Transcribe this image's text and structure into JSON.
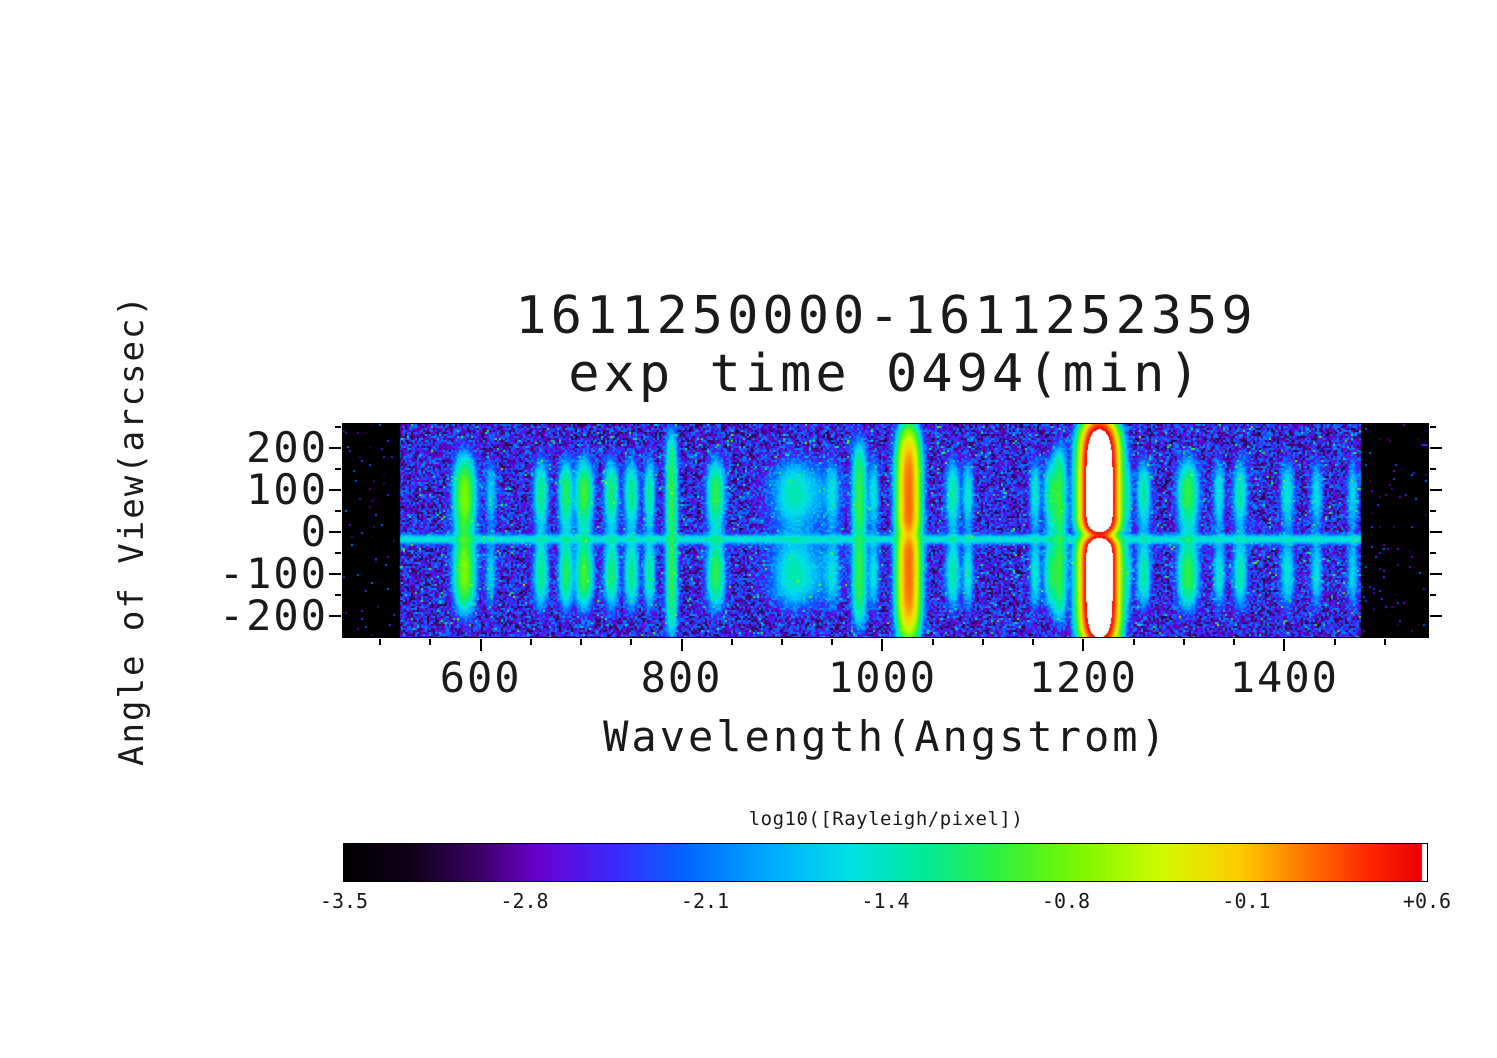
{
  "chart_data": {
    "type": "heatmap",
    "title": "1611250000-1611252359",
    "subtitle": "exp time 0494(min)",
    "xlabel": "Wavelength(Angstrom)",
    "ylabel": "Angle of View(arcsec)",
    "x_ticks": [
      "600",
      "800",
      "1000",
      "1200",
      "1400"
    ],
    "x_tick_values": [
      600,
      800,
      1000,
      1200,
      1400
    ],
    "x_minor_tick_values": [
      500,
      550,
      650,
      700,
      750,
      850,
      900,
      950,
      1050,
      1100,
      1150,
      1250,
      1300,
      1350,
      1450,
      1500
    ],
    "y_ticks": [
      "200",
      "100",
      "0",
      "-100",
      "-200"
    ],
    "y_tick_values": [
      200,
      100,
      0,
      -100,
      -200
    ],
    "y_minor_tick_values": [
      250,
      150,
      50,
      -50,
      -150,
      -250
    ],
    "xlim": [
      463,
      1543
    ],
    "ylim": [
      -250,
      256
    ],
    "data_region": [
      520,
      1476
    ],
    "background_log_level": -2.6,
    "center_streak": {
      "y": -18,
      "intensity": -1.55,
      "sigma": 6
    },
    "colorbar": {
      "label": "log10([Rayleigh/pixel])",
      "tick_labels": [
        "-3.5",
        "-2.8",
        "-2.1",
        "-1.4",
        "-0.8",
        "-0.1",
        "+0.6"
      ],
      "range": [
        -3.5,
        0.6
      ]
    },
    "emission_lines": [
      {
        "wavelength": 584,
        "intensity": -0.72,
        "width": 7,
        "profile": "lobes",
        "lobe1": 90,
        "lobe2": 100,
        "sig1": 68,
        "sig2": 72
      },
      {
        "wavelength": 610,
        "intensity": -1.75,
        "width": 4,
        "profile": "lobes"
      },
      {
        "wavelength": 660,
        "intensity": -1.25,
        "width": 5,
        "profile": "lobes"
      },
      {
        "wavelength": 685,
        "intensity": -1.12,
        "width": 5,
        "profile": "lobes"
      },
      {
        "wavelength": 703,
        "intensity": -0.95,
        "width": 6,
        "profile": "lobes"
      },
      {
        "wavelength": 730,
        "intensity": -1.18,
        "width": 5,
        "profile": "lobes"
      },
      {
        "wavelength": 750,
        "intensity": -1.25,
        "width": 5,
        "profile": "lobes"
      },
      {
        "wavelength": 768,
        "intensity": -1.3,
        "width": 4,
        "profile": "lobes"
      },
      {
        "wavelength": 790,
        "intensity": -1.05,
        "width": 4,
        "profile": "full",
        "extent": 212,
        "pinch": 0.3
      },
      {
        "wavelength": 834,
        "intensity": -1.05,
        "width": 6,
        "profile": "lobes"
      },
      {
        "wavelength": 911,
        "intensity": -1.55,
        "width": 13,
        "profile": "lobes"
      },
      {
        "wavelength": 923,
        "intensity": -1.85,
        "width": 25,
        "profile": "lobes"
      },
      {
        "wavelength": 950,
        "intensity": -1.65,
        "width": 5,
        "profile": "lobes"
      },
      {
        "wavelength": 977,
        "intensity": -1.02,
        "width": 5,
        "profile": "full",
        "extent": 192,
        "pinch": 0.4
      },
      {
        "wavelength": 991,
        "intensity": -1.55,
        "width": 4,
        "profile": "lobes"
      },
      {
        "wavelength": 1026,
        "intensity": 0.2,
        "width": 7,
        "profile": "full",
        "extent": 215,
        "pinch": 0.45,
        "pinch_sigma": 18
      },
      {
        "wavelength": 1070,
        "intensity": -1.35,
        "width": 5,
        "profile": "lobes"
      },
      {
        "wavelength": 1085,
        "intensity": -1.5,
        "width": 4,
        "profile": "lobes"
      },
      {
        "wavelength": 1152,
        "intensity": -1.5,
        "width": 4,
        "profile": "lobes"
      },
      {
        "wavelength": 1168,
        "intensity": -1.15,
        "width": 5,
        "profile": "lobes"
      },
      {
        "wavelength": 1176,
        "intensity": -1.02,
        "width": 5,
        "profile": "full",
        "extent": 178,
        "pinch": 0.4
      },
      {
        "wavelength": 1216,
        "intensity": 1.35,
        "width": 10,
        "profile": "full",
        "extent": 232,
        "exp": 8,
        "pinch": 0.88,
        "pinch_sigma": 18
      },
      {
        "wavelength": 1243,
        "intensity": -1.55,
        "width": 4,
        "profile": "lobes"
      },
      {
        "wavelength": 1260,
        "intensity": -1.35,
        "width": 5,
        "profile": "lobes"
      },
      {
        "wavelength": 1304,
        "intensity": -1.02,
        "width": 7,
        "profile": "lobes"
      },
      {
        "wavelength": 1335,
        "intensity": -1.5,
        "width": 4,
        "profile": "lobes"
      },
      {
        "wavelength": 1356,
        "intensity": -1.38,
        "width": 5,
        "profile": "lobes"
      },
      {
        "wavelength": 1403,
        "intensity": -1.55,
        "width": 5,
        "profile": "lobes"
      },
      {
        "wavelength": 1432,
        "intensity": -1.62,
        "width": 4,
        "profile": "lobes"
      },
      {
        "wavelength": 1468,
        "intensity": -1.7,
        "width": 4,
        "profile": "lobes"
      }
    ]
  },
  "colormap": {
    "under_color": "#000000",
    "over_color": "#ffffff",
    "stops": [
      {
        "p": 0.0,
        "c": [
          0,
          0,
          0
        ]
      },
      {
        "p": 0.06,
        "c": [
          15,
          0,
          25
        ]
      },
      {
        "p": 0.12,
        "c": [
          55,
          0,
          95
        ]
      },
      {
        "p": 0.18,
        "c": [
          105,
          0,
          205
        ]
      },
      {
        "p": 0.25,
        "c": [
          60,
          40,
          255
        ]
      },
      {
        "p": 0.32,
        "c": [
          0,
          105,
          255
        ]
      },
      {
        "p": 0.4,
        "c": [
          0,
          175,
          255
        ]
      },
      {
        "p": 0.47,
        "c": [
          0,
          225,
          230
        ]
      },
      {
        "p": 0.54,
        "c": [
          0,
          235,
          150
        ]
      },
      {
        "p": 0.61,
        "c": [
          50,
          240,
          60
        ]
      },
      {
        "p": 0.68,
        "c": [
          120,
          248,
          0
        ]
      },
      {
        "p": 0.76,
        "c": [
          210,
          250,
          0
        ]
      },
      {
        "p": 0.83,
        "c": [
          255,
          205,
          0
        ]
      },
      {
        "p": 0.89,
        "c": [
          255,
          120,
          0
        ]
      },
      {
        "p": 0.95,
        "c": [
          255,
          40,
          0
        ]
      },
      {
        "p": 1.0,
        "c": [
          235,
          0,
          0
        ]
      }
    ]
  }
}
